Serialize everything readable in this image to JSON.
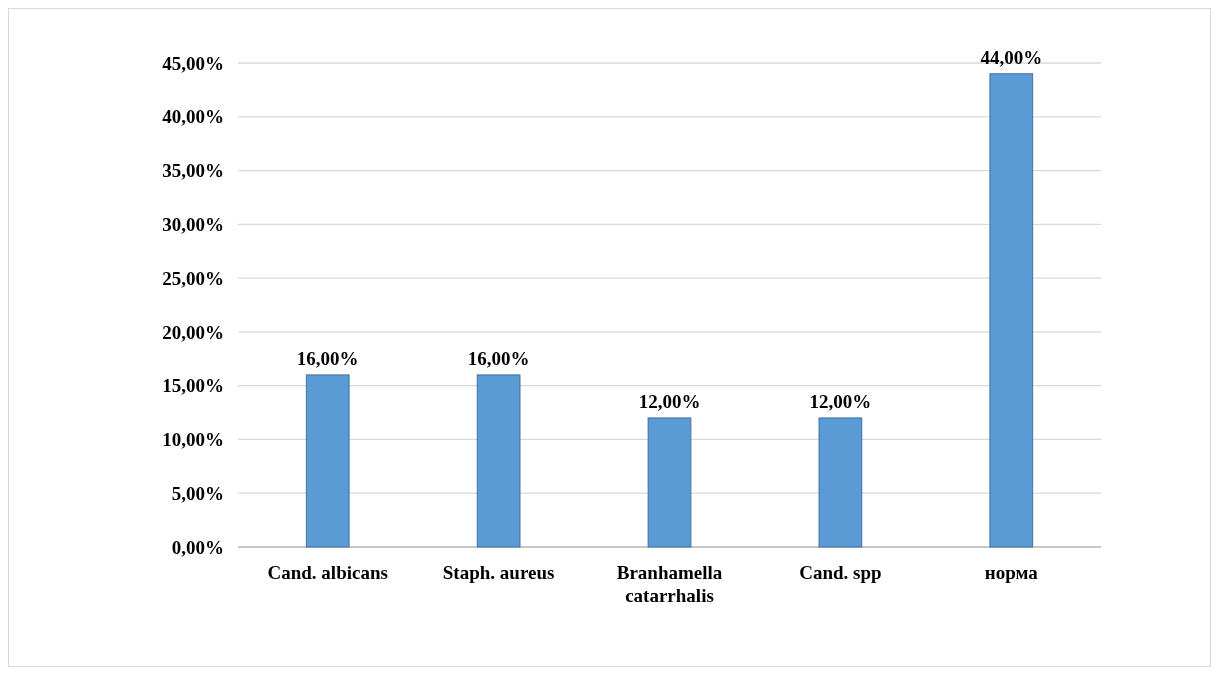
{
  "chart_data": {
    "type": "bar",
    "categories": [
      "Cand. albicans",
      "Staph. aureus",
      "Branhamella catarrhalis",
      "Cand. spp",
      "норма"
    ],
    "values": [
      16,
      16,
      12,
      12,
      44
    ],
    "value_labels": [
      "16,00%",
      "16,00%",
      "12,00%",
      "12,00%",
      "44,00%"
    ],
    "color": "#5b9bd5",
    "ylim": [
      0,
      45
    ],
    "yticks": [
      {
        "value": 0,
        "label": "0,00%"
      },
      {
        "value": 5,
        "label": "5,00%"
      },
      {
        "value": 10,
        "label": "10,00%"
      },
      {
        "value": 15,
        "label": "15,00%"
      },
      {
        "value": 20,
        "label": "20,00%"
      },
      {
        "value": 25,
        "label": "25,00%"
      },
      {
        "value": 30,
        "label": "30,00%"
      },
      {
        "value": 35,
        "label": "35,00%"
      },
      {
        "value": 40,
        "label": "40,00%"
      },
      {
        "value": 45,
        "label": "45,00%"
      }
    ],
    "grid": true
  }
}
